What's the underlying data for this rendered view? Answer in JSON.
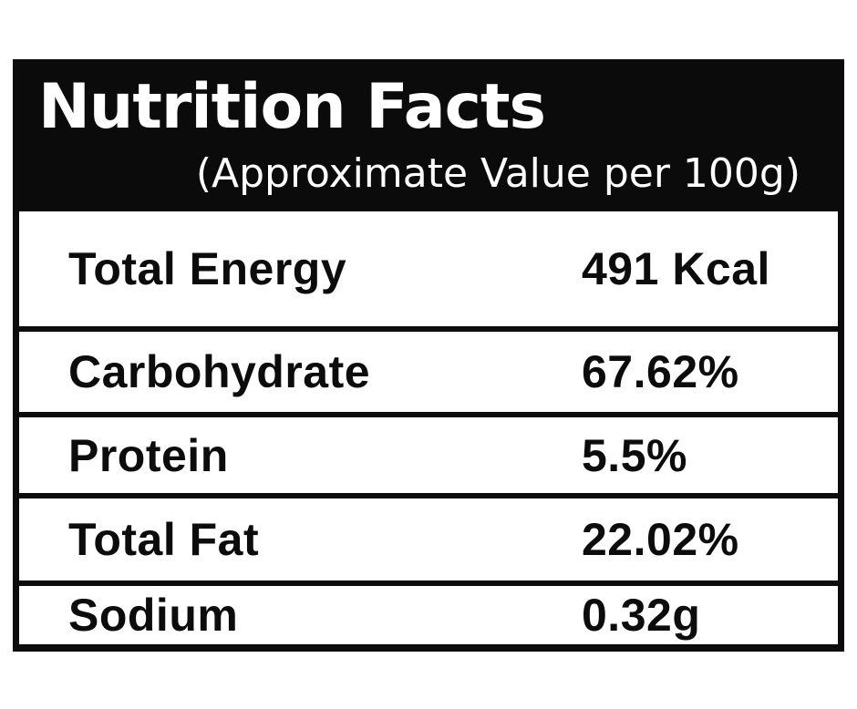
{
  "label": {
    "title": "Nutrition Facts",
    "subtitle": "(Approximate Value per 100g)",
    "colors": {
      "page_bg": "#ffffff",
      "header_bg": "#0b0b0b",
      "header_text": "#ffffff",
      "body_text": "#0c0c0c",
      "border": "#0c0c0c"
    },
    "rows": [
      {
        "name": "Total Energy",
        "value": "491 Kcal"
      },
      {
        "name": "Carbohydrate",
        "value": "67.62%"
      },
      {
        "name": "Protein",
        "value": "5.5%"
      },
      {
        "name": "Total Fat",
        "value": "22.02%"
      },
      {
        "name": "Sodium",
        "value": "0.32g"
      }
    ]
  }
}
